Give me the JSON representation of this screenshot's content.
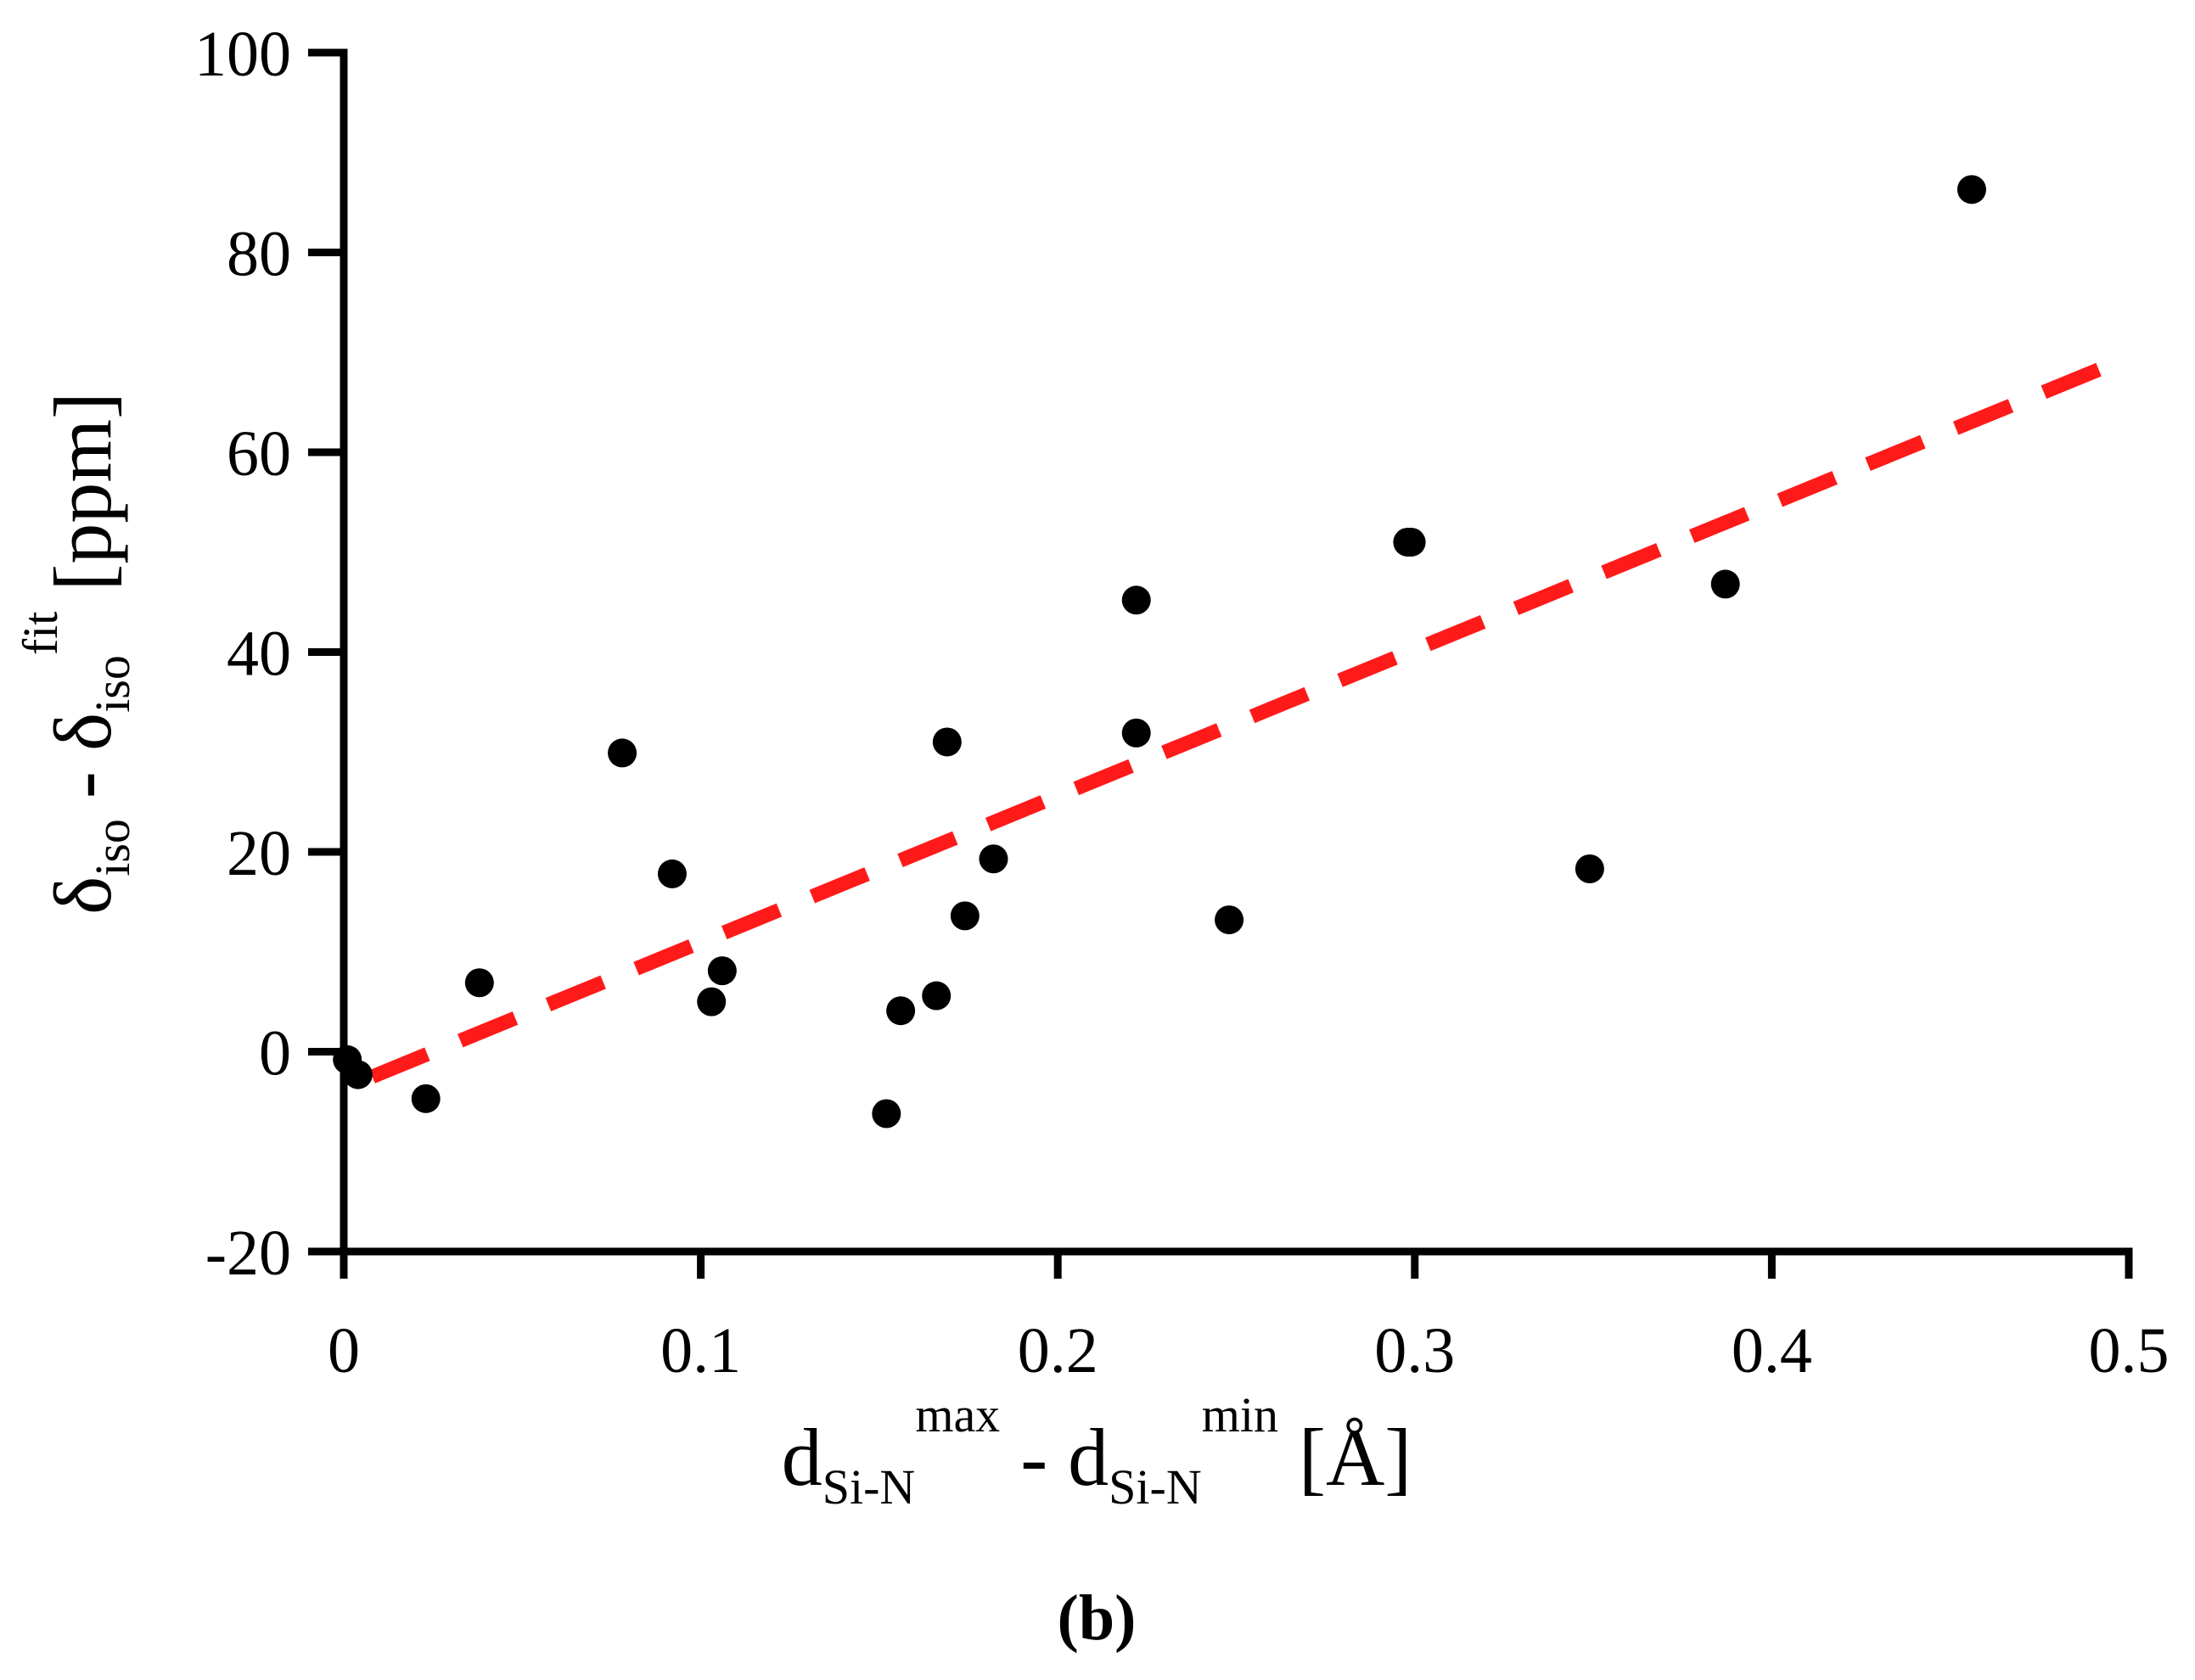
{
  "colors": {
    "axis": "#000000",
    "points": "#000000",
    "fit_line": "#ff1a1a",
    "background": "#ffffff"
  },
  "chart_data": {
    "type": "scatter",
    "title": "",
    "panel_label": "(b)",
    "xlabel": {
      "main": "d",
      "first_sub": "Si-N",
      "first_sup": "max",
      "separator": " - ",
      "second": "d",
      "second_sub": "Si-N",
      "second_sup": "min",
      "unit": " [Å]"
    },
    "ylabel": {
      "main": "δ",
      "first_sub": "iso",
      "separator": " - ",
      "second": "δ",
      "second_sub": "iso",
      "second_sup": "fit",
      "unit": " [ppm]"
    },
    "xlim": [
      0,
      0.5
    ],
    "ylim": [
      -20,
      100
    ],
    "xticks": [
      0,
      0.1,
      0.2,
      0.3,
      0.4,
      0.5
    ],
    "xtick_labels": [
      "0",
      "0.1",
      "0.2",
      "0.3",
      "0.4",
      "0.5"
    ],
    "yticks": [
      -20,
      0,
      20,
      40,
      60,
      80,
      100
    ],
    "ytick_labels": [
      "-20",
      "0",
      "20",
      "40",
      "60",
      "80",
      "100"
    ],
    "grid": false,
    "series": [
      {
        "name": "data",
        "marker": "circle",
        "x": [
          0.001,
          0.004,
          0.023,
          0.038,
          0.078,
          0.092,
          0.103,
          0.106,
          0.152,
          0.156,
          0.166,
          0.169,
          0.174,
          0.182,
          0.222,
          0.222,
          0.248,
          0.298,
          0.299,
          0.349,
          0.387,
          0.456
        ],
        "y": [
          -0.8,
          -2.3,
          -4.7,
          6.9,
          29.9,
          17.8,
          5.0,
          8.1,
          -6.2,
          4.1,
          5.6,
          31.0,
          13.6,
          19.3,
          45.2,
          31.9,
          13.2,
          51.0,
          51.0,
          18.3,
          46.8,
          86.3
        ]
      },
      {
        "name": "linear fit",
        "line_style": "dashed",
        "x": [
          0.008,
          0.5
        ],
        "y": [
          -2.5,
          69.5
        ]
      }
    ]
  }
}
